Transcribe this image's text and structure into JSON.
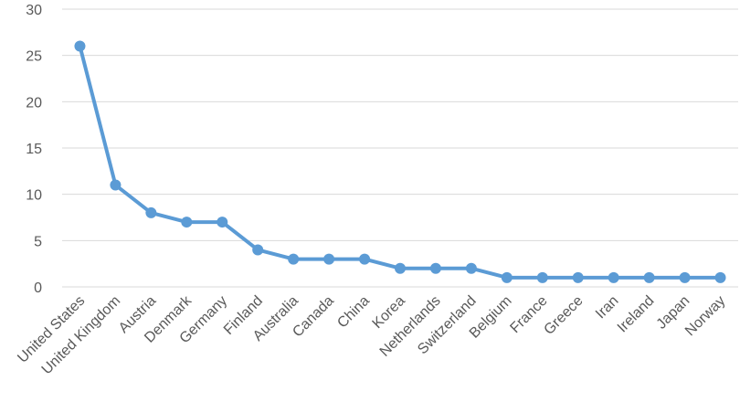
{
  "chart_data": {
    "type": "line",
    "title": "",
    "xlabel": "",
    "ylabel": "",
    "ylim": [
      0,
      30
    ],
    "yticks": [
      0,
      5,
      10,
      15,
      20,
      25,
      30
    ],
    "grid": true,
    "legend": "none",
    "categories": [
      "United States",
      "United Kingdom",
      "Austria",
      "Denmark",
      "Germany",
      "Finland",
      "Australia",
      "Canada",
      "China",
      "Korea",
      "Netherlands",
      "Switzerland",
      "Belgium",
      "France",
      "Greece",
      "Iran",
      "Ireland",
      "Japan",
      "Norway"
    ],
    "series": [
      {
        "color": "#5b9bd5",
        "values": [
          26,
          11,
          8,
          7,
          7,
          4,
          3,
          3,
          3,
          2,
          2,
          2,
          1,
          1,
          1,
          1,
          1,
          1,
          1
        ]
      }
    ]
  }
}
